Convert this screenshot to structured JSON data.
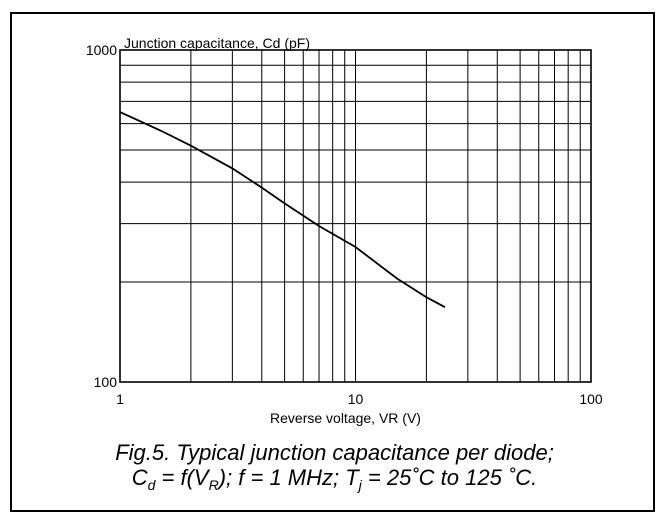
{
  "chart_data": {
    "type": "line",
    "ylabel": "Junction capacitance, Cd (pF)",
    "xlabel": "Reverse voltage, VR (V)",
    "x_scale": "log",
    "y_scale": "log",
    "xlim": [
      1,
      100
    ],
    "ylim": [
      100,
      1000
    ],
    "x_tick_labels": [
      "1",
      "10",
      "100"
    ],
    "y_tick_labels": [
      "100",
      "1000"
    ],
    "grid": true,
    "series": [
      {
        "x": [
          1,
          1.5,
          2,
          3,
          4,
          5,
          7,
          10,
          15,
          20,
          24
        ],
        "values": [
          650,
          570,
          515,
          440,
          385,
          345,
          295,
          255,
          205,
          180,
          168
        ]
      }
    ]
  },
  "caption": {
    "line1": "Fig.5.   Typical junction capacitance per diode;",
    "line2_parts": [
      "C",
      "d",
      " = f(V",
      "R",
      "); f = 1 MHz; T",
      "j",
      " = 25˚C to 125 ˚C."
    ]
  }
}
